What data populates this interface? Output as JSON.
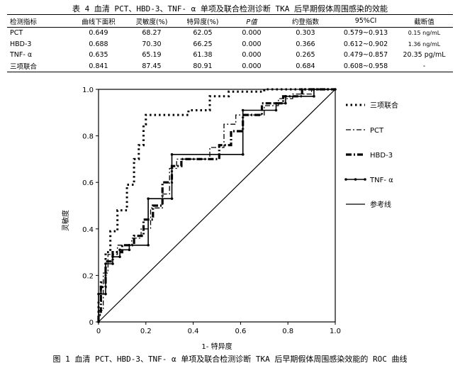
{
  "table": {
    "caption": "表 4  血清 PCT、HBD-3、TNF- α 单项及联合检测诊断 TKA 后早期假体周围感染的效能",
    "headers": [
      "检测指标",
      "曲线下面积",
      "灵敏度(%)",
      "特异度(%)",
      "P值",
      "约登指数",
      "95%CI",
      "截断值"
    ],
    "rows": [
      [
        "PCT",
        "0.649",
        "68.27",
        "62.05",
        "0.000",
        "0.303",
        "0.579~0.913",
        "0.15 ng/mL"
      ],
      [
        "HBD-3",
        "0.688",
        "70.30",
        "66.25",
        "0.000",
        "0.366",
        "0.612~0.902",
        "1.36 ng/mL"
      ],
      [
        "TNF- α",
        "0.635",
        "65.19",
        "61.38",
        "0.000",
        "0.265",
        "0.479~0.857",
        "20.35 pg/mL"
      ],
      [
        "三项联合",
        "0.841",
        "87.45",
        "80.91",
        "0.000",
        "0.684",
        "0.608~0.958",
        "-"
      ]
    ]
  },
  "chart_data": {
    "type": "line",
    "xlabel": "1- 特异度",
    "ylabel": "灵敏度",
    "xlim": [
      0,
      1
    ],
    "ylim": [
      0,
      1
    ],
    "xticks": [
      "0",
      "0.2",
      "0.4",
      "0.6",
      "0.8",
      "1.0"
    ],
    "yticks": [
      "0",
      "0.2",
      "0.4",
      "0.6",
      "0.8",
      "1.0"
    ],
    "legend_position": "right",
    "series": [
      {
        "name": "三项联合",
        "style": "dotted-bold",
        "points": [
          [
            0,
            0
          ],
          [
            0,
            0.09
          ],
          [
            0.01,
            0.09
          ],
          [
            0.01,
            0.17
          ],
          [
            0.03,
            0.17
          ],
          [
            0.03,
            0.3
          ],
          [
            0.05,
            0.3
          ],
          [
            0.05,
            0.39
          ],
          [
            0.08,
            0.39
          ],
          [
            0.08,
            0.48
          ],
          [
            0.12,
            0.48
          ],
          [
            0.12,
            0.59
          ],
          [
            0.15,
            0.59
          ],
          [
            0.15,
            0.7
          ],
          [
            0.17,
            0.7
          ],
          [
            0.17,
            0.76
          ],
          [
            0.19,
            0.76
          ],
          [
            0.19,
            0.85
          ],
          [
            0.2,
            0.85
          ],
          [
            0.2,
            0.89
          ],
          [
            0.38,
            0.89
          ],
          [
            0.38,
            0.91
          ],
          [
            0.47,
            0.91
          ],
          [
            0.47,
            0.97
          ],
          [
            0.55,
            0.97
          ],
          [
            0.55,
            0.99
          ],
          [
            0.7,
            0.99
          ],
          [
            0.7,
            1.0
          ],
          [
            1.0,
            1.0
          ]
        ]
      },
      {
        "name": "PCT",
        "style": "dash-dot",
        "points": [
          [
            0,
            0
          ],
          [
            0,
            0.05
          ],
          [
            0.02,
            0.05
          ],
          [
            0.02,
            0.21
          ],
          [
            0.04,
            0.21
          ],
          [
            0.04,
            0.29
          ],
          [
            0.08,
            0.29
          ],
          [
            0.08,
            0.33
          ],
          [
            0.14,
            0.33
          ],
          [
            0.14,
            0.36
          ],
          [
            0.18,
            0.36
          ],
          [
            0.18,
            0.4
          ],
          [
            0.22,
            0.4
          ],
          [
            0.22,
            0.49
          ],
          [
            0.27,
            0.49
          ],
          [
            0.27,
            0.55
          ],
          [
            0.3,
            0.55
          ],
          [
            0.3,
            0.66
          ],
          [
            0.33,
            0.66
          ],
          [
            0.33,
            0.7
          ],
          [
            0.47,
            0.7
          ],
          [
            0.47,
            0.75
          ],
          [
            0.53,
            0.75
          ],
          [
            0.53,
            0.85
          ],
          [
            0.58,
            0.85
          ],
          [
            0.58,
            0.89
          ],
          [
            0.7,
            0.89
          ],
          [
            0.7,
            0.93
          ],
          [
            0.76,
            0.93
          ],
          [
            0.76,
            0.96
          ],
          [
            0.82,
            0.96
          ],
          [
            0.82,
            0.98
          ],
          [
            0.9,
            0.98
          ],
          [
            0.9,
            1.0
          ],
          [
            1.0,
            1.0
          ]
        ]
      },
      {
        "name": "HBD-3",
        "style": "dash-bold",
        "points": [
          [
            0,
            0
          ],
          [
            0,
            0.03
          ],
          [
            0.01,
            0.03
          ],
          [
            0.01,
            0.15
          ],
          [
            0.03,
            0.15
          ],
          [
            0.03,
            0.26
          ],
          [
            0.06,
            0.26
          ],
          [
            0.06,
            0.3
          ],
          [
            0.1,
            0.3
          ],
          [
            0.1,
            0.33
          ],
          [
            0.15,
            0.33
          ],
          [
            0.15,
            0.37
          ],
          [
            0.19,
            0.37
          ],
          [
            0.19,
            0.44
          ],
          [
            0.23,
            0.44
          ],
          [
            0.23,
            0.5
          ],
          [
            0.27,
            0.5
          ],
          [
            0.27,
            0.6
          ],
          [
            0.31,
            0.6
          ],
          [
            0.31,
            0.67
          ],
          [
            0.35,
            0.67
          ],
          [
            0.35,
            0.7
          ],
          [
            0.51,
            0.7
          ],
          [
            0.51,
            0.76
          ],
          [
            0.56,
            0.76
          ],
          [
            0.56,
            0.82
          ],
          [
            0.61,
            0.82
          ],
          [
            0.61,
            0.89
          ],
          [
            0.69,
            0.89
          ],
          [
            0.69,
            0.94
          ],
          [
            0.78,
            0.94
          ],
          [
            0.78,
            0.97
          ],
          [
            0.86,
            0.97
          ],
          [
            0.86,
            1.0
          ],
          [
            1.0,
            1.0
          ]
        ]
      },
      {
        "name": "TNF- α",
        "style": "dot-marker",
        "points": [
          [
            0,
            0
          ],
          [
            0,
            0.12
          ],
          [
            0.03,
            0.12
          ],
          [
            0.03,
            0.25
          ],
          [
            0.06,
            0.25
          ],
          [
            0.06,
            0.28
          ],
          [
            0.09,
            0.28
          ],
          [
            0.09,
            0.31
          ],
          [
            0.13,
            0.31
          ],
          [
            0.13,
            0.33
          ],
          [
            0.21,
            0.33
          ],
          [
            0.21,
            0.53
          ],
          [
            0.31,
            0.53
          ],
          [
            0.31,
            0.72
          ],
          [
            0.61,
            0.72
          ],
          [
            0.61,
            0.91
          ],
          [
            0.75,
            0.91
          ],
          [
            0.75,
            0.94
          ],
          [
            0.79,
            0.94
          ],
          [
            0.79,
            0.97
          ],
          [
            0.91,
            0.97
          ],
          [
            0.91,
            1.0
          ],
          [
            1.0,
            1.0
          ]
        ]
      },
      {
        "name": "参考线",
        "style": "solid",
        "points": [
          [
            0,
            0
          ],
          [
            1,
            1
          ]
        ]
      }
    ]
  },
  "figure": {
    "caption": "图 1  血清 PCT、HBD-3、TNF- α 单项及联合检测诊断 TKA 后早期假体周围感染效能的 ROC 曲线"
  }
}
